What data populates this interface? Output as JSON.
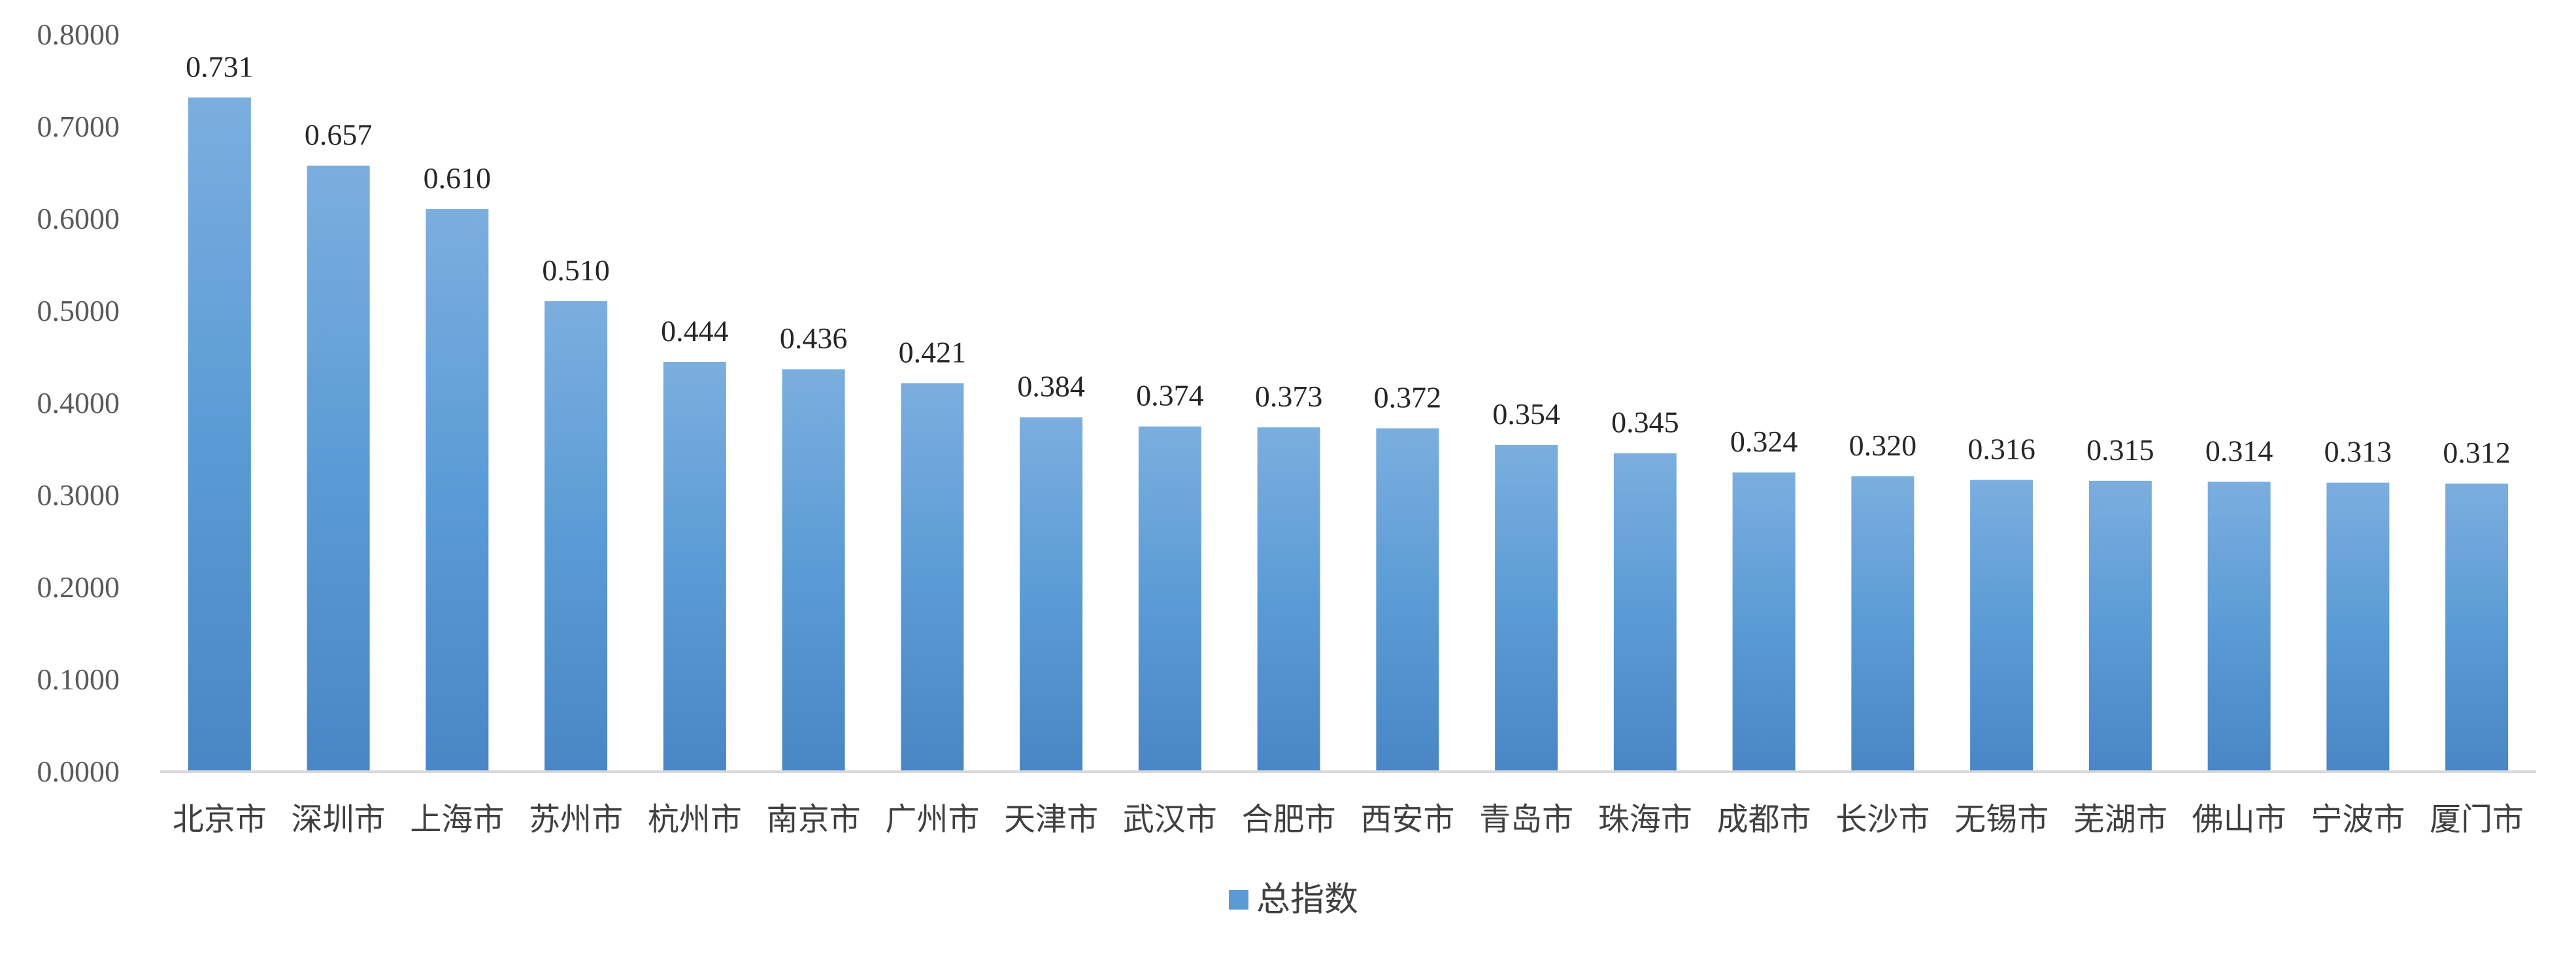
{
  "chart_data": {
    "type": "bar",
    "categories": [
      "北京市",
      "深圳市",
      "上海市",
      "苏州市",
      "杭州市",
      "南京市",
      "广州市",
      "天津市",
      "武汉市",
      "合肥市",
      "西安市",
      "青岛市",
      "珠海市",
      "成都市",
      "长沙市",
      "无锡市",
      "芜湖市",
      "佛山市",
      "宁波市",
      "厦门市"
    ],
    "series": [
      {
        "name": "总指数",
        "values": [
          0.731,
          0.657,
          0.61,
          0.51,
          0.444,
          0.436,
          0.421,
          0.384,
          0.374,
          0.373,
          0.372,
          0.354,
          0.345,
          0.324,
          0.32,
          0.316,
          0.315,
          0.314,
          0.313,
          0.312
        ],
        "data_labels": [
          "0.731",
          "0.657",
          "0.610",
          "0.510",
          "0.444",
          "0.436",
          "0.421",
          "0.384",
          "0.374",
          "0.373",
          "0.372",
          "0.354",
          "0.345",
          "0.324",
          "0.320",
          "0.316",
          "0.315",
          "0.314",
          "0.313",
          "0.312"
        ],
        "color": "#5B9BD5"
      }
    ],
    "ylim": [
      0,
      0.8
    ],
    "yticks": [
      0,
      0.1,
      0.2,
      0.3,
      0.4,
      0.5,
      0.6,
      0.7,
      0.8
    ],
    "ytick_labels": [
      "0.0000",
      "0.1000",
      "0.2000",
      "0.3000",
      "0.4000",
      "0.5000",
      "0.6000",
      "0.7000",
      "0.8000"
    ],
    "grid": false,
    "legend_position": "bottom",
    "title": "",
    "xlabel": "",
    "ylabel": ""
  },
  "colors": {
    "bar_top": "#7BAEDF",
    "bar_mid": "#5B9BD5",
    "bar_bottom": "#4A86C5",
    "axis": "#D9D9D9"
  }
}
